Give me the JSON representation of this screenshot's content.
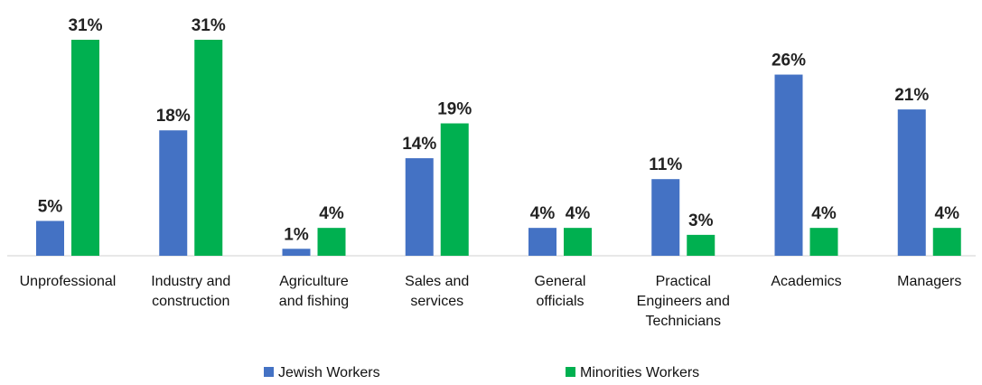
{
  "chart_data": {
    "type": "bar",
    "categories": [
      [
        "Unprofessional"
      ],
      [
        "Industry and",
        "construction"
      ],
      [
        "Agriculture",
        "and fishing"
      ],
      [
        "Sales and",
        "services"
      ],
      [
        "General",
        "officials"
      ],
      [
        "Practical",
        "Engineers and",
        "Technicians"
      ],
      [
        "Academics"
      ],
      [
        "Managers"
      ]
    ],
    "series": [
      {
        "name": "Jewish Workers",
        "color": "#4472C4",
        "values": [
          5,
          18,
          1,
          14,
          4,
          11,
          26,
          21
        ],
        "labels": [
          "5%",
          "18%",
          "1%",
          "14%",
          "4%",
          "11%",
          "26%",
          "21%"
        ]
      },
      {
        "name": "Minorities Workers",
        "color": "#00B050",
        "values": [
          31,
          31,
          4,
          19,
          4,
          3,
          4,
          4
        ],
        "labels": [
          "31%",
          "31%",
          "4%",
          "19%",
          "4%",
          "3%",
          "4%",
          "4%"
        ]
      }
    ],
    "ylim": [
      0,
      31
    ],
    "legend": "bottom",
    "grid": false
  }
}
